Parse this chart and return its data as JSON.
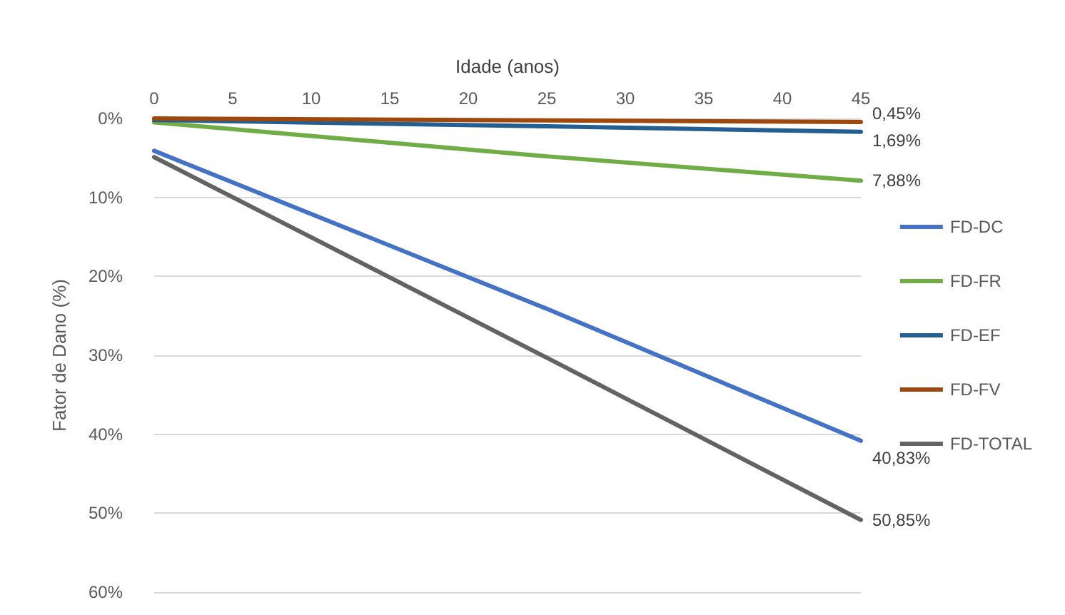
{
  "chart_data": {
    "type": "line",
    "xlabel": "Idade (anos)",
    "ylabel": "Fator de Dano (%)",
    "x": [
      0,
      25,
      45
    ],
    "series": [
      {
        "name": "FD-DC",
        "color": "#4472c4",
        "values": [
          4.1,
          24.1,
          40.83
        ],
        "value_labels": [
          null,
          null,
          "40,83%"
        ]
      },
      {
        "name": "FD-FR",
        "color": "#70ad47",
        "values": [
          0.5,
          4.8,
          7.88
        ],
        "value_labels": [
          null,
          null,
          "7,88%"
        ]
      },
      {
        "name": "FD-EF",
        "color": "#255e91",
        "values": [
          0.2,
          1.0,
          1.69
        ],
        "value_labels": [
          null,
          null,
          "1,69%"
        ]
      },
      {
        "name": "FD-FV",
        "color": "#9e480e",
        "values": [
          0,
          0.25,
          0.45
        ],
        "value_labels": [
          null,
          null,
          "0,45%"
        ]
      },
      {
        "name": "FD-TOTAL",
        "color": "#636363",
        "values": [
          4.9,
          30.3,
          50.85
        ],
        "value_labels": [
          null,
          null,
          "50,85%"
        ]
      }
    ],
    "xlim": [
      0,
      45
    ],
    "xticks": [
      0,
      5,
      10,
      15,
      20,
      25,
      30,
      35,
      40,
      45
    ],
    "ylim": [
      60,
      0
    ],
    "yticks": [
      {
        "value": 0,
        "label": "0%"
      },
      {
        "value": 10,
        "label": "10%"
      },
      {
        "value": 20,
        "label": "20%"
      },
      {
        "value": 30,
        "label": "30%"
      },
      {
        "value": 40,
        "label": "40%"
      },
      {
        "value": 50,
        "label": "50%"
      },
      {
        "value": 60,
        "label": "60%"
      }
    ],
    "grid": "y",
    "legend": "right",
    "marker": "none",
    "line_style": "solid"
  }
}
